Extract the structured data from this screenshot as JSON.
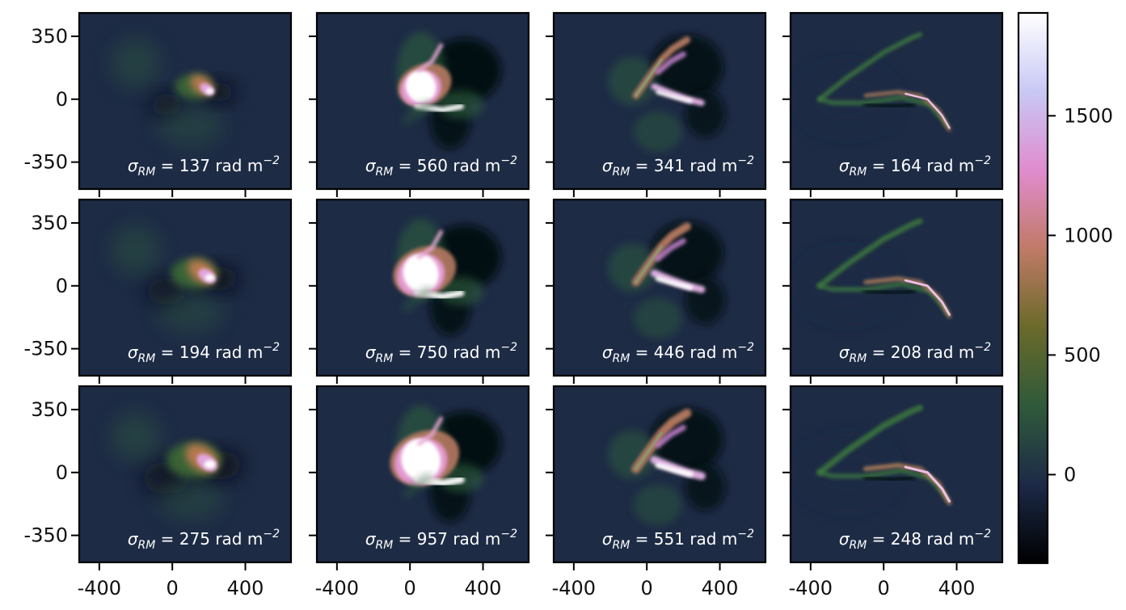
{
  "chart_data": {
    "type": "heatmap",
    "layout": {
      "rows": 3,
      "cols": 4
    },
    "x_ticks": [
      "-400",
      "0",
      "400"
    ],
    "x_tick_values": [
      -400,
      0,
      400
    ],
    "y_ticks": [
      "350",
      "0",
      "-350"
    ],
    "y_tick_values": [
      350,
      0,
      -350
    ],
    "xlim": [
      -510,
      650
    ],
    "ylim": [
      -500,
      480
    ],
    "colorbar": {
      "ticks": [
        "1500",
        "1000",
        "500",
        "0"
      ],
      "tick_values": [
        1500,
        1000,
        500,
        0
      ],
      "range": [
        -370,
        1930
      ],
      "colormap": "cubehelix",
      "colors": [
        "#000000",
        "#1c2a48",
        "#2f5a3a",
        "#6a6a2a",
        "#c07a66",
        "#e08ccf",
        "#c8c8f5",
        "#ffffff"
      ]
    },
    "annotation_template": {
      "symbol": "σ",
      "subscript": "RM",
      "equals": " = ",
      "unit": " rad m",
      "exponent": "−2"
    },
    "panels": [
      {
        "row": 0,
        "col": 0,
        "sigma_rm": "137",
        "style": 0,
        "scale": 0.7
      },
      {
        "row": 0,
        "col": 1,
        "sigma_rm": "560",
        "style": 1,
        "scale": 0.85
      },
      {
        "row": 0,
        "col": 2,
        "sigma_rm": "341",
        "style": 2,
        "scale": 0.85
      },
      {
        "row": 0,
        "col": 3,
        "sigma_rm": "164",
        "style": 3,
        "scale": 0.8
      },
      {
        "row": 1,
        "col": 0,
        "sigma_rm": "194",
        "style": 0,
        "scale": 0.85
      },
      {
        "row": 1,
        "col": 1,
        "sigma_rm": "750",
        "style": 1,
        "scale": 1.0
      },
      {
        "row": 1,
        "col": 2,
        "sigma_rm": "446",
        "style": 2,
        "scale": 1.0
      },
      {
        "row": 1,
        "col": 3,
        "sigma_rm": "208",
        "style": 3,
        "scale": 0.95
      },
      {
        "row": 2,
        "col": 0,
        "sigma_rm": "275",
        "style": 0,
        "scale": 1.0
      },
      {
        "row": 2,
        "col": 1,
        "sigma_rm": "957",
        "style": 1,
        "scale": 1.1
      },
      {
        "row": 2,
        "col": 2,
        "sigma_rm": "551",
        "style": 2,
        "scale": 1.1
      },
      {
        "row": 2,
        "col": 3,
        "sigma_rm": "248",
        "style": 3,
        "scale": 1.05
      }
    ]
  }
}
